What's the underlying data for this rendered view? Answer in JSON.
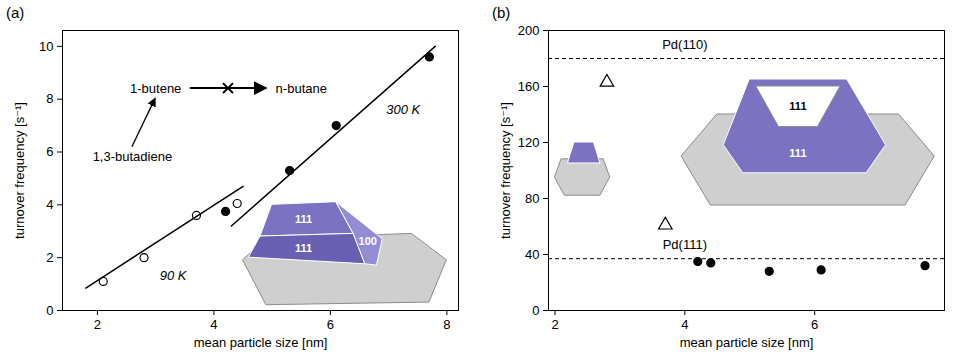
{
  "chart_data": [
    {
      "type": "scatter",
      "title": "(a)",
      "x_label": "mean particle size [nm]",
      "y_label": "turnover frequency [s⁻¹]",
      "xlim": [
        1.4,
        8.2
      ],
      "xticks": [
        2,
        4,
        6,
        8
      ],
      "ylim": [
        0,
        10.6
      ],
      "yticks": [
        0,
        2,
        4,
        6,
        8,
        10
      ],
      "series": [
        {
          "type": "scatter",
          "marker": "open circle",
          "color": "#000000",
          "x": [
            2.1,
            2.8,
            3.7,
            4.4
          ],
          "values": [
            1.1,
            2.0,
            3.6,
            4.05
          ]
        },
        {
          "type": "scatter",
          "marker": "filled circle",
          "color": "#000000",
          "x": [
            4.2,
            5.3,
            6.1,
            7.7
          ],
          "values": [
            3.75,
            5.3,
            7.0,
            9.6
          ]
        },
        {
          "type": "line",
          "line_style": "solid",
          "color": "#000000",
          "x": [
            1.8,
            4.5
          ],
          "values": [
            0.85,
            4.7
          ]
        },
        {
          "type": "line",
          "line_style": "solid",
          "color": "#000000",
          "x": [
            4.3,
            7.8
          ],
          "values": [
            3.2,
            10.0
          ]
        }
      ],
      "annotations": [
        {
          "text": "90 K",
          "x": 3.3,
          "y": 1.3
        },
        {
          "text": "300 K",
          "x": 7.25,
          "y": 7.6
        }
      ],
      "reaction": {
        "reactant": {
          "text": "1,3-butadiene",
          "x": 2.6,
          "y": 5.8
        },
        "product": {
          "text": "1-butene",
          "x": 3.0,
          "y": 8.4
        },
        "blocked_product": {
          "text": "n-butane",
          "x": 5.5,
          "y": 8.4
        }
      },
      "inset_labels": [
        {
          "text": "111",
          "x": 5.55,
          "y": 3.45
        },
        {
          "text": "111",
          "x": 5.55,
          "y": 2.35
        },
        {
          "text": "100",
          "x": 6.65,
          "y": 2.6
        }
      ]
    },
    {
      "type": "scatter",
      "title": "(b)",
      "x_label": "mean particle size [nm]",
      "y_label": "turnover frequency [s⁻¹]",
      "xlim": [
        1.9,
        8.0
      ],
      "xticks": [
        2,
        4,
        6
      ],
      "ylim": [
        0,
        200
      ],
      "yticks": [
        0,
        40,
        80,
        120,
        160,
        200
      ],
      "series": [
        {
          "type": "rule",
          "line_style": "dashed",
          "color": "#000000",
          "values": [
            180
          ]
        },
        {
          "type": "rule",
          "line_style": "dashed",
          "color": "#000000",
          "values": [
            37
          ]
        },
        {
          "type": "scatter",
          "marker": "open triangle",
          "color": "#000000",
          "x": [
            2.8,
            3.7
          ],
          "values": [
            163,
            61
          ]
        },
        {
          "type": "scatter",
          "marker": "filled circle",
          "color": "#000000",
          "x": [
            4.2,
            4.4,
            5.3,
            6.1,
            7.7
          ],
          "values": [
            35,
            34,
            28,
            29,
            32
          ]
        }
      ],
      "line_labels": [
        {
          "text": "Pd(110)",
          "x": 4.0,
          "y": 190
        },
        {
          "text": "Pd(111)",
          "x": 4.0,
          "y": 47
        }
      ],
      "inset_labels": [
        {
          "text": "111",
          "x": 5.75,
          "y": 146
        },
        {
          "text": "111",
          "x": 5.75,
          "y": 112
        }
      ]
    }
  ]
}
